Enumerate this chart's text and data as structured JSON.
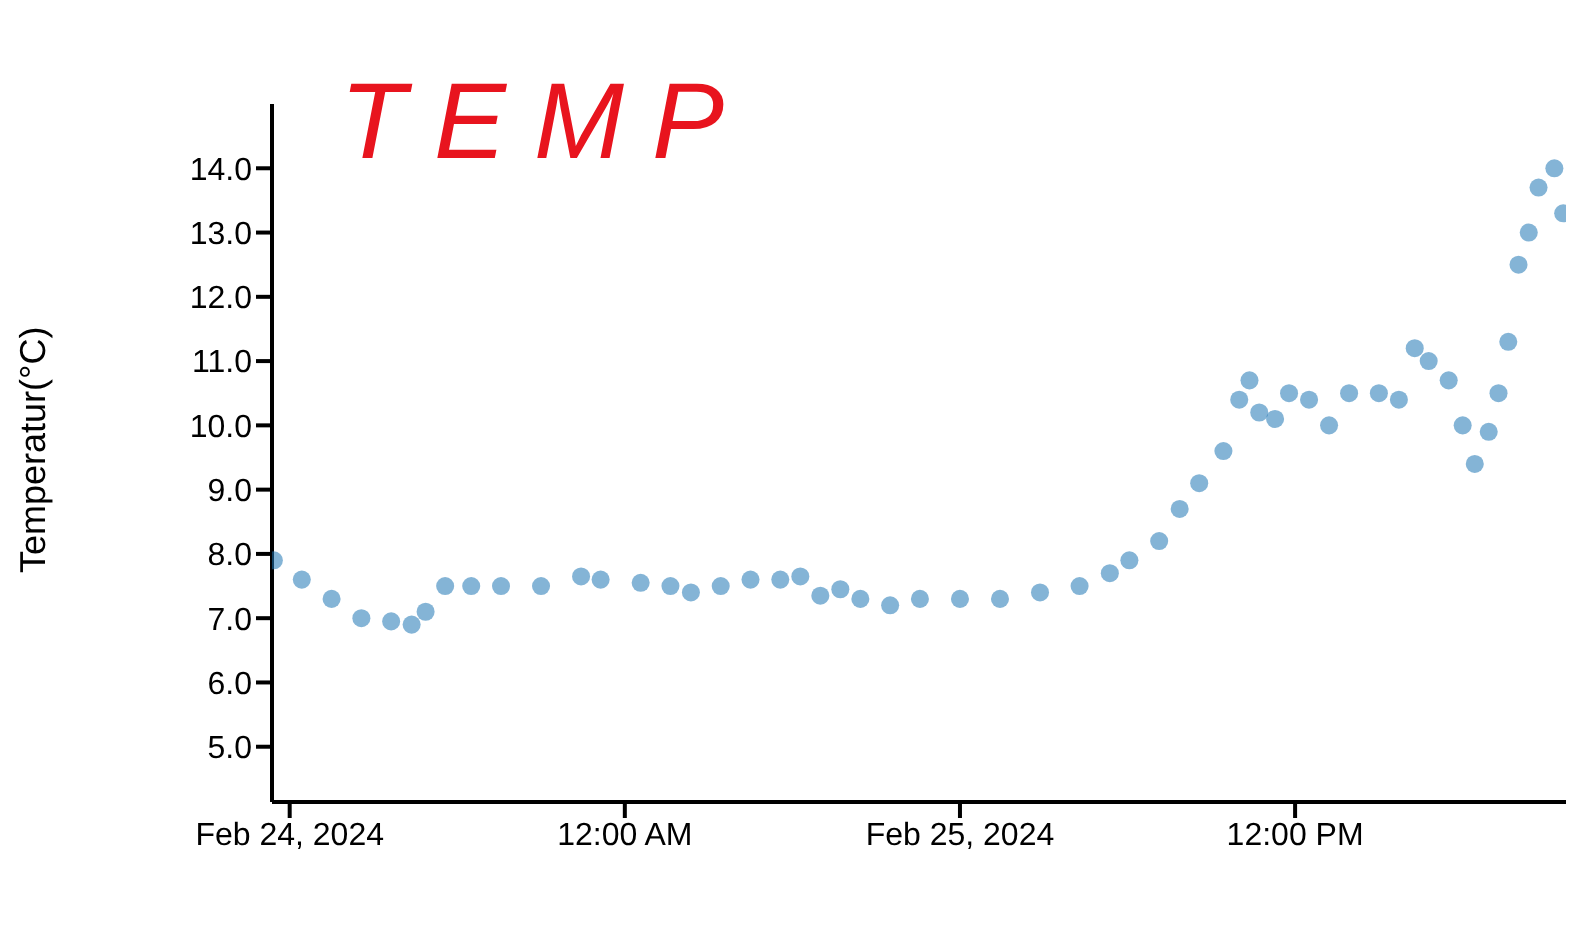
{
  "chart_data": {
    "type": "scatter",
    "ylabel": "Temperatur(°C)",
    "annotations": [
      "TEMP"
    ],
    "x": [
      "2024-02-23T23:26",
      "2024-02-24T00:26",
      "2024-02-24T01:30",
      "2024-02-24T02:34",
      "2024-02-24T03:38",
      "2024-02-24T04:22",
      "2024-02-24T04:52",
      "2024-02-24T05:34",
      "2024-02-24T06:30",
      "2024-02-24T07:34",
      "2024-02-24T09:00",
      "2024-02-24T10:26",
      "2024-02-24T11:08",
      "2024-02-24T12:34",
      "2024-02-24T13:38",
      "2024-02-24T14:22",
      "2024-02-24T15:26",
      "2024-02-24T16:30",
      "2024-02-24T17:34",
      "2024-02-24T18:17",
      "2024-02-24T19:00",
      "2024-02-24T19:43",
      "2024-02-24T20:26",
      "2024-02-24T21:30",
      "2024-02-24T22:34",
      "2024-02-25T00:00",
      "2024-02-25T01:26",
      "2024-02-25T02:52",
      "2024-02-25T04:17",
      "2024-02-25T05:22",
      "2024-02-25T06:04",
      "2024-02-25T07:08",
      "2024-02-25T07:52",
      "2024-02-25T08:34",
      "2024-02-25T09:26",
      "2024-02-25T10:00",
      "2024-02-25T10:22",
      "2024-02-25T10:43",
      "2024-02-25T11:17",
      "2024-02-25T11:47",
      "2024-02-25T12:30",
      "2024-02-25T13:13",
      "2024-02-25T13:56",
      "2024-02-25T15:00",
      "2024-02-25T15:43",
      "2024-02-25T16:17",
      "2024-02-25T16:47",
      "2024-02-25T17:30",
      "2024-02-25T18:00",
      "2024-02-25T18:26",
      "2024-02-25T18:56",
      "2024-02-25T19:17",
      "2024-02-25T19:38",
      "2024-02-25T20:00",
      "2024-02-25T20:22",
      "2024-02-25T20:43",
      "2024-02-25T21:17",
      "2024-02-25T21:36"
    ],
    "series": [
      {
        "color": "#1f77b4",
        "values": [
          7.9,
          7.6,
          7.3,
          7.0,
          6.95,
          6.9,
          7.1,
          7.5,
          7.5,
          7.5,
          7.5,
          7.65,
          7.6,
          7.55,
          7.5,
          7.4,
          7.5,
          7.6,
          7.6,
          7.65,
          7.35,
          7.45,
          7.3,
          7.2,
          7.3,
          7.3,
          7.3,
          7.4,
          7.5,
          7.7,
          7.9,
          8.2,
          8.7,
          9.1,
          9.6,
          10.4,
          10.7,
          10.2,
          10.1,
          10.5,
          10.4,
          10.0,
          10.5,
          10.5,
          10.4,
          11.2,
          11.0,
          10.7,
          10.0,
          9.4,
          9.9,
          10.5,
          11.3,
          12.5,
          13.0,
          13.7,
          14.0,
          13.3
        ]
      }
    ],
    "xlim": [
      "2024-02-23T23:22",
      "2024-02-25T21:42"
    ],
    "xticks": [
      {
        "value": "2024-02-24T00:00",
        "label": "Feb 24, 2024"
      },
      {
        "value": "2024-02-24T12:00",
        "label": "12:00 AM"
      },
      {
        "value": "2024-02-25T00:00",
        "label": "Feb 25, 2024"
      },
      {
        "value": "2024-02-25T12:00",
        "label": "12:00 PM"
      }
    ],
    "ylim": [
      4.14,
      15.0
    ],
    "yticks": [
      {
        "value": 5,
        "label": "5.0"
      },
      {
        "value": 6,
        "label": "6.0"
      },
      {
        "value": 7,
        "label": "7.0"
      },
      {
        "value": 8,
        "label": "8.0"
      },
      {
        "value": 9,
        "label": "9.0"
      },
      {
        "value": 10,
        "label": "10.0"
      },
      {
        "value": 11,
        "label": "11.0"
      },
      {
        "value": 12,
        "label": "12.0"
      },
      {
        "value": 13,
        "label": "13.0"
      },
      {
        "value": 14,
        "label": "14.0"
      }
    ],
    "grid": false,
    "legend": false,
    "marker": "circle"
  }
}
